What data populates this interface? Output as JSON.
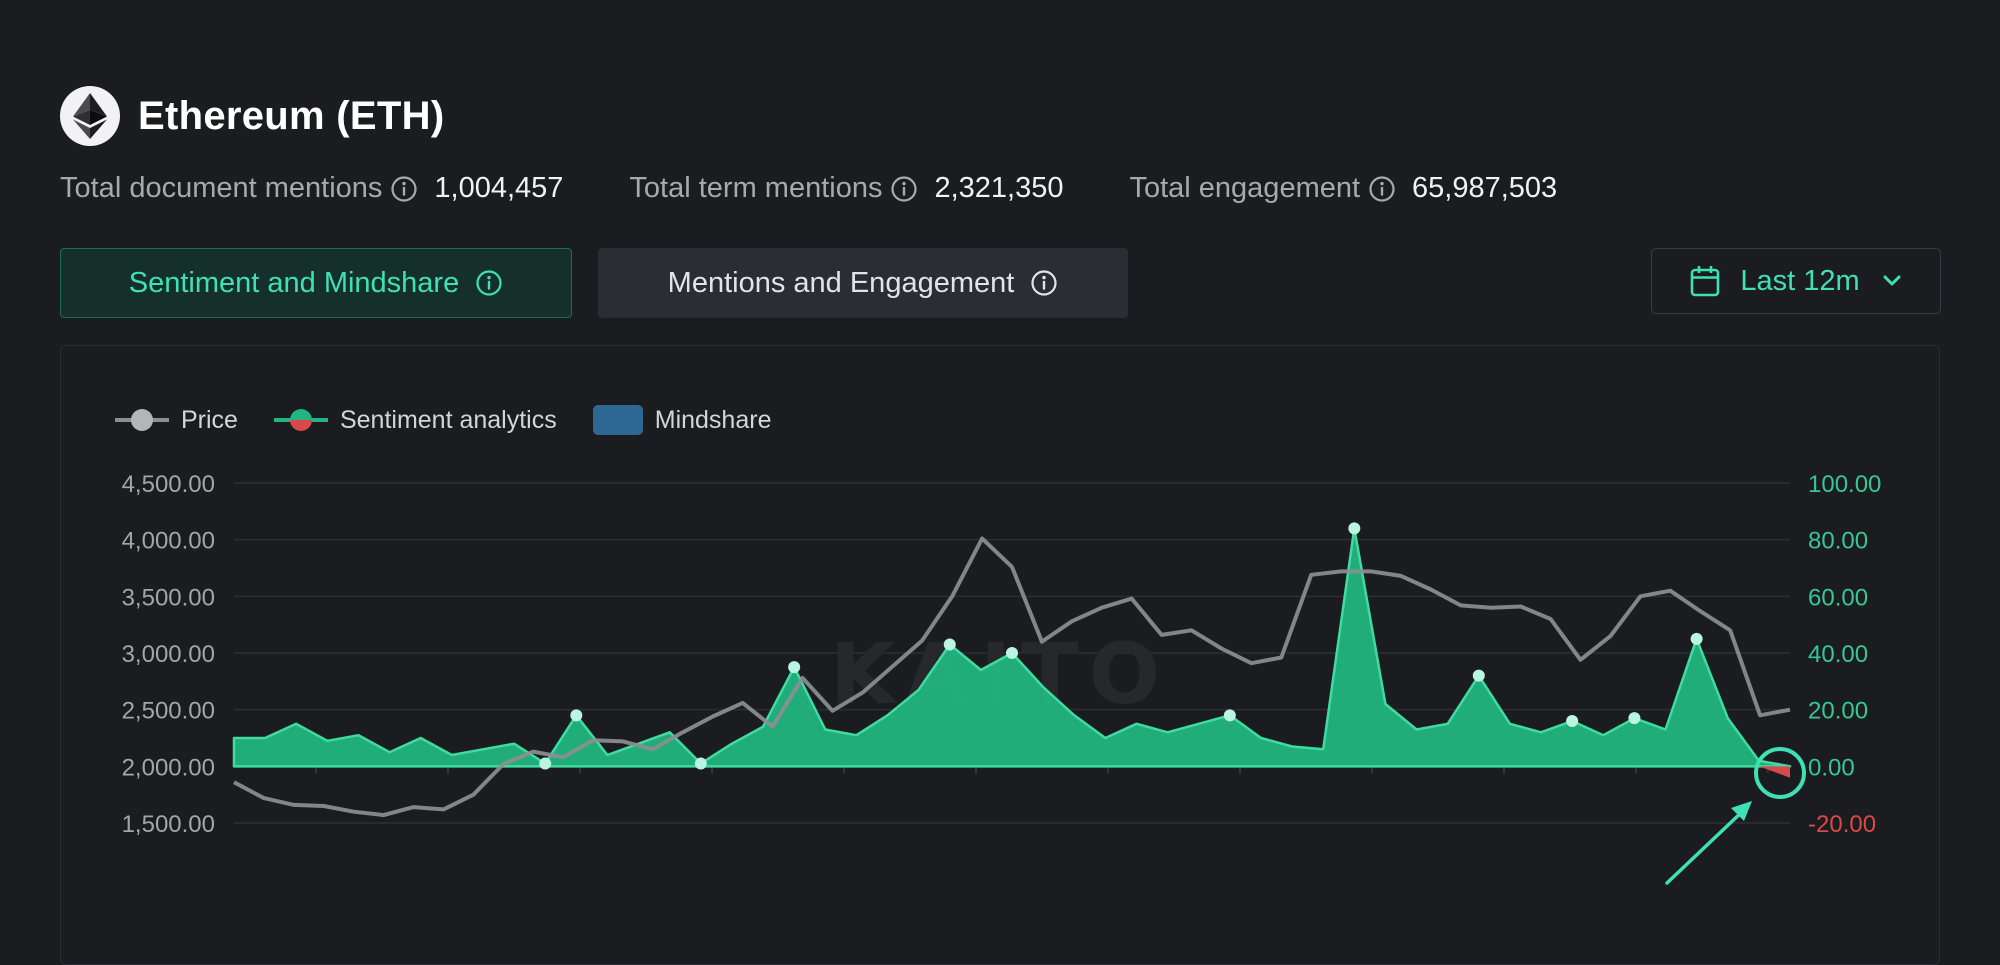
{
  "header": {
    "title": "Ethereum (ETH)",
    "logo_icon": "ethereum-icon"
  },
  "stats": [
    {
      "label": "Total document mentions",
      "value": "1,004,457"
    },
    {
      "label": "Total term mentions",
      "value": "2,321,350"
    },
    {
      "label": "Total engagement",
      "value": "65,987,503"
    }
  ],
  "tabs": {
    "sentiment_label": "Sentiment and Mindshare",
    "mentions_label": "Mentions and Engagement",
    "active": "sentiment"
  },
  "date_range": {
    "label": "Last 12m",
    "icon": "calendar-icon"
  },
  "colors": {
    "accent": "#3fe0b4",
    "sentiment_positive": "#22b57f",
    "sentiment_negative": "#d9484a",
    "price_line": "#8d8e91",
    "mindshare": "#2d6892",
    "background": "#1b1c1f"
  },
  "chart_data": {
    "type": "line",
    "legend": [
      "Price",
      "Sentiment analytics",
      "Mindshare"
    ],
    "legend_position": "top-left",
    "watermark": "KAITO",
    "y_left": {
      "ticks": [
        "4,500.00",
        "4,000.00",
        "3,500.00",
        "3,000.00",
        "2,500.00",
        "2,000.00",
        "1,500.00"
      ],
      "range": [
        1500,
        4500
      ]
    },
    "y_right": {
      "ticks": [
        "100.00",
        "80.00",
        "60.00",
        "40.00",
        "20.00",
        "0.00",
        "-20.00"
      ],
      "range": [
        -20,
        100
      ]
    },
    "grid": true,
    "series": [
      {
        "name": "Price",
        "axis": "left",
        "values": [
          1860,
          1720,
          1660,
          1650,
          1600,
          1570,
          1640,
          1620,
          1750,
          2020,
          2130,
          2080,
          2230,
          2220,
          2150,
          2300,
          2440,
          2560,
          2350,
          2780,
          2490,
          2650,
          2880,
          3110,
          3500,
          4010,
          3760,
          3100,
          3280,
          3400,
          3480,
          3160,
          3200,
          3040,
          2910,
          2960,
          3690,
          3720,
          3720,
          3680,
          3560,
          3420,
          3400,
          3410,
          3300,
          2940,
          3150,
          3500,
          3550,
          3370,
          3200,
          2450,
          2500
        ]
      },
      {
        "name": "Sentiment analytics",
        "axis": "right",
        "values": [
          10,
          10,
          15,
          9,
          11,
          5,
          10,
          4,
          6,
          8,
          1,
          18,
          4,
          8,
          12,
          1,
          8,
          14,
          35,
          13,
          11,
          18,
          27,
          43,
          34,
          40,
          28,
          18,
          10,
          15,
          12,
          15,
          18,
          10,
          7,
          6,
          84,
          22,
          13,
          15,
          32,
          15,
          12,
          16,
          11,
          17,
          13,
          45,
          17,
          2,
          -4
        ]
      }
    ]
  }
}
